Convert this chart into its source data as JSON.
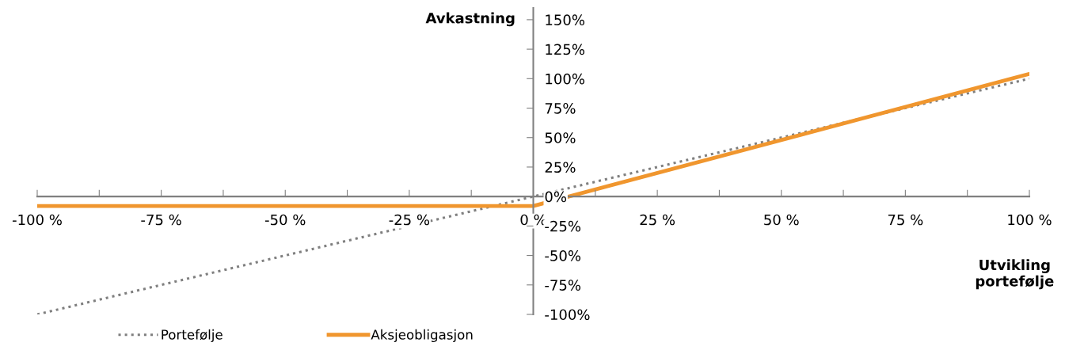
{
  "chart_data": {
    "type": "line",
    "xlabel": "Utvikling\nportefølje",
    "ylabel": "Avkastning",
    "series": [
      {
        "name": "Portefølje",
        "color": "#7f7f7f",
        "line_style": "dotted",
        "x": [
          -100,
          100
        ],
        "values": [
          -100,
          100
        ]
      },
      {
        "name": "Aksjeobligasjon",
        "color": "#f0962e",
        "line_style": "solid",
        "x": [
          -100,
          0,
          100
        ],
        "values": [
          -8,
          -8,
          104
        ]
      }
    ],
    "xlim": [
      -100,
      100
    ],
    "ylim": [
      -100,
      160
    ],
    "xticks": [
      {
        "value": -100,
        "label": "-100 %"
      },
      {
        "value": -87.5,
        "label": null
      },
      {
        "value": -75,
        "label": "-75 %"
      },
      {
        "value": -62.5,
        "label": null
      },
      {
        "value": -50,
        "label": "-50 %"
      },
      {
        "value": -37.5,
        "label": null
      },
      {
        "value": -25,
        "label": "-25 %"
      },
      {
        "value": -12.5,
        "label": null
      },
      {
        "value": 0,
        "label": "0 %"
      },
      {
        "value": 12.5,
        "label": null
      },
      {
        "value": 25,
        "label": "25 %"
      },
      {
        "value": 37.5,
        "label": null
      },
      {
        "value": 50,
        "label": "50 %"
      },
      {
        "value": 62.5,
        "label": null
      },
      {
        "value": 75,
        "label": "75 %"
      },
      {
        "value": 87.5,
        "label": null
      },
      {
        "value": 100,
        "label": "100 %"
      }
    ],
    "yticks": [
      {
        "value": -100,
        "label": "-100%"
      },
      {
        "value": -75,
        "label": "-75%"
      },
      {
        "value": -50,
        "label": "-50%"
      },
      {
        "value": -25,
        "label": "-25%"
      },
      {
        "value": 0,
        "label": "0%"
      },
      {
        "value": 25,
        "label": "25%"
      },
      {
        "value": 50,
        "label": "50%"
      },
      {
        "value": 75,
        "label": "75%"
      },
      {
        "value": 100,
        "label": "100%"
      },
      {
        "value": 125,
        "label": "125%"
      },
      {
        "value": 150,
        "label": "150%"
      }
    ],
    "grid": false,
    "legend": "bottom left"
  }
}
